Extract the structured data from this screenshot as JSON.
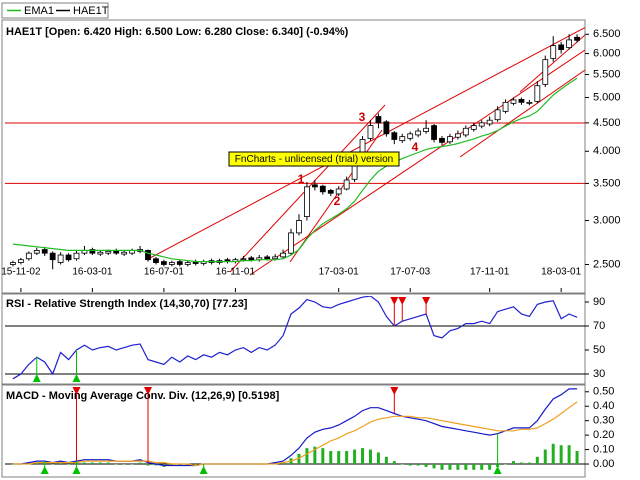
{
  "chart_data": [
    {
      "type": "candlestick",
      "name": "HAE1T",
      "info": "HAE1T [Open: 6.420  High: 6.500  Low: 6.280  Close: 6.340] (-0.94%)",
      "watermark": "FnCharts - unlicensed (trial) version",
      "annotations": [
        "1",
        "2",
        "3",
        "4"
      ],
      "xlim": [
        -1,
        72
      ],
      "xticks": [
        {
          "value": 1,
          "label": "15-11-02"
        },
        {
          "value": 10,
          "label": "16-03-01"
        },
        {
          "value": 19,
          "label": "16-07-01"
        },
        {
          "value": 28,
          "label": "16-11-01"
        },
        {
          "value": 41,
          "label": "17-03-01"
        },
        {
          "value": 50,
          "label": "17-07-03"
        },
        {
          "value": 60,
          "label": "17-11-01"
        },
        {
          "value": 69,
          "label": "18-03-01"
        }
      ],
      "ylim": [
        2.23,
        6.84
      ],
      "log_scale": true,
      "yticks": [
        {
          "value": 2.5,
          "label": "2.500"
        },
        {
          "value": 3,
          "label": "3.000"
        },
        {
          "value": 3.5,
          "label": "3.500"
        },
        {
          "value": 4,
          "label": "4.000"
        },
        {
          "value": 4.5,
          "label": "4.500"
        },
        {
          "value": 5,
          "label": "5.000"
        },
        {
          "value": 5.5,
          "label": "5.500"
        },
        {
          "value": 6,
          "label": "6.000"
        },
        {
          "value": 6.5,
          "label": "6.500"
        }
      ],
      "color_up": "#ffffff",
      "color_down": "#000000",
      "open": [
        2.5,
        2.52,
        2.56,
        2.62,
        2.66,
        2.62,
        2.52,
        2.6,
        2.56,
        2.62,
        2.66,
        2.61,
        2.62,
        2.65,
        2.61,
        2.62,
        2.64,
        2.65,
        2.56,
        2.53,
        2.5,
        2.53,
        2.5,
        2.53,
        2.51,
        2.54,
        2.52,
        2.55,
        2.53,
        2.55,
        2.57,
        2.55,
        2.58,
        2.56,
        2.58,
        2.62,
        2.85,
        3.05,
        3.48,
        3.46,
        3.4,
        3.35,
        3.42,
        3.56,
        3.82,
        4.22,
        4.62,
        4.52,
        4.32,
        4.18,
        4.22,
        4.28,
        4.34,
        4.45,
        4.22,
        4.16,
        4.24,
        4.28,
        4.38,
        4.44,
        4.48,
        4.56,
        4.72,
        4.88,
        4.96,
        4.88,
        4.92,
        5.28,
        5.88,
        6.22,
        6.15,
        6.42
      ],
      "high": [
        2.54,
        2.57,
        2.64,
        2.68,
        2.69,
        2.64,
        2.63,
        2.62,
        2.65,
        2.7,
        2.68,
        2.65,
        2.66,
        2.67,
        2.65,
        2.67,
        2.7,
        2.66,
        2.58,
        2.55,
        2.54,
        2.55,
        2.54,
        2.55,
        2.55,
        2.56,
        2.56,
        2.57,
        2.57,
        2.59,
        2.59,
        2.6,
        2.6,
        2.61,
        2.66,
        2.9,
        3.08,
        3.52,
        3.55,
        3.48,
        3.42,
        3.46,
        3.6,
        3.86,
        4.26,
        4.55,
        4.68,
        4.55,
        4.35,
        4.3,
        4.34,
        4.4,
        4.55,
        4.48,
        4.26,
        4.3,
        4.36,
        4.45,
        4.5,
        4.55,
        4.62,
        4.82,
        4.96,
        5.0,
        5.0,
        4.95,
        5.35,
        5.95,
        6.45,
        6.3,
        6.5,
        6.5
      ],
      "low": [
        2.48,
        2.5,
        2.54,
        2.6,
        2.59,
        2.45,
        2.5,
        2.53,
        2.54,
        2.6,
        2.6,
        2.59,
        2.6,
        2.6,
        2.59,
        2.6,
        2.62,
        2.53,
        2.5,
        2.48,
        2.48,
        2.48,
        2.48,
        2.49,
        2.49,
        2.5,
        2.5,
        2.51,
        2.51,
        2.53,
        2.53,
        2.53,
        2.54,
        2.54,
        2.56,
        2.6,
        2.82,
        3.0,
        3.4,
        3.34,
        3.32,
        3.32,
        3.4,
        3.52,
        3.78,
        4.18,
        4.4,
        4.25,
        4.12,
        4.14,
        4.18,
        4.24,
        4.3,
        4.15,
        4.1,
        4.12,
        4.2,
        4.24,
        4.34,
        4.4,
        4.44,
        4.52,
        4.68,
        4.84,
        4.85,
        4.84,
        4.88,
        5.22,
        5.8,
        6.0,
        6.1,
        6.28
      ],
      "close": [
        2.52,
        2.55,
        2.62,
        2.65,
        2.62,
        2.55,
        2.6,
        2.55,
        2.62,
        2.65,
        2.62,
        2.63,
        2.64,
        2.62,
        2.63,
        2.65,
        2.66,
        2.55,
        2.52,
        2.5,
        2.52,
        2.5,
        2.52,
        2.51,
        2.53,
        2.52,
        2.54,
        2.53,
        2.55,
        2.56,
        2.55,
        2.57,
        2.56,
        2.58,
        2.62,
        2.85,
        3.0,
        3.45,
        3.45,
        3.38,
        3.36,
        3.42,
        3.55,
        3.8,
        4.2,
        4.45,
        4.5,
        4.3,
        4.2,
        4.25,
        4.3,
        4.35,
        4.4,
        4.2,
        4.15,
        4.25,
        4.3,
        4.4,
        4.45,
        4.5,
        4.55,
        4.75,
        4.9,
        4.95,
        4.9,
        4.9,
        5.25,
        5.85,
        6.2,
        6.1,
        6.35,
        6.34
      ],
      "series": [
        {
          "name": "EMA1",
          "color": "#22bb22",
          "values": [
            2.72,
            2.71,
            2.7,
            2.69,
            2.68,
            2.67,
            2.66,
            2.65,
            2.65,
            2.65,
            2.65,
            2.65,
            2.65,
            2.65,
            2.65,
            2.65,
            2.65,
            2.62,
            2.6,
            2.58,
            2.56,
            2.55,
            2.54,
            2.53,
            2.53,
            2.53,
            2.53,
            2.53,
            2.53,
            2.54,
            2.54,
            2.55,
            2.55,
            2.55,
            2.56,
            2.6,
            2.66,
            2.78,
            2.88,
            2.96,
            3.02,
            3.08,
            3.15,
            3.25,
            3.4,
            3.55,
            3.68,
            3.76,
            3.82,
            3.88,
            3.93,
            3.98,
            4.03,
            4.06,
            4.08,
            4.1,
            4.13,
            4.17,
            4.21,
            4.26,
            4.3,
            4.36,
            4.44,
            4.52,
            4.58,
            4.63,
            4.72,
            4.88,
            5.05,
            5.18,
            5.3,
            5.42
          ]
        }
      ]
    },
    {
      "type": "line",
      "title": "RSI - Relative Strength Index (14,30,70) [77.23]",
      "xlim": [
        -1,
        72
      ],
      "ylim": [
        22.5,
        95
      ],
      "yticks": [
        30,
        50,
        70,
        90
      ],
      "levels": [
        70,
        30
      ],
      "color": "#2020d0",
      "values": [
        26,
        30,
        38,
        44,
        40,
        30,
        48,
        42,
        50,
        54,
        50,
        52,
        53,
        50,
        52,
        54,
        55,
        42,
        40,
        38,
        44,
        40,
        45,
        42,
        46,
        44,
        48,
        46,
        50,
        52,
        48,
        52,
        50,
        54,
        62,
        80,
        85,
        92,
        90,
        86,
        85,
        88,
        90,
        92,
        94,
        95,
        90,
        78,
        70,
        74,
        76,
        78,
        80,
        62,
        60,
        66,
        68,
        72,
        72,
        74,
        72,
        82,
        84,
        86,
        80,
        78,
        88,
        90,
        91,
        76,
        80,
        77.23
      ],
      "sell_signals": [
        48,
        49,
        52
      ],
      "buy_signals": [
        3,
        8
      ],
      "sell_color": "#e00000",
      "buy_color": "#00c000"
    },
    {
      "type": "macd",
      "title": "MACD - Moving Average Conv. Div. (12,26,9) [0.5198]",
      "xlim": [
        -1,
        72
      ],
      "ylim": [
        -0.076,
        0.54
      ],
      "yticks": [
        {
          "value": 0,
          "label": "0.00"
        },
        {
          "value": 0.1,
          "label": "0.10"
        },
        {
          "value": 0.2,
          "label": "0.20"
        },
        {
          "value": 0.3,
          "label": "0.30"
        },
        {
          "value": 0.4,
          "label": "0.40"
        },
        {
          "value": 0.5,
          "label": "0.50"
        }
      ],
      "series": [
        {
          "color": "#1818c8",
          "values": [
            0.0,
            0.0,
            0.01,
            0.02,
            0.02,
            0.01,
            0.02,
            0.01,
            0.02,
            0.03,
            0.03,
            0.03,
            0.03,
            0.02,
            0.02,
            0.02,
            0.03,
            0.01,
            0.0,
            -0.01,
            -0.01,
            -0.01,
            -0.01,
            -0.01,
            0.0,
            0.0,
            0.0,
            0.0,
            0.0,
            0.0,
            0.0,
            0.0,
            0.0,
            0.01,
            0.02,
            0.06,
            0.11,
            0.18,
            0.22,
            0.24,
            0.25,
            0.27,
            0.3,
            0.33,
            0.37,
            0.39,
            0.39,
            0.37,
            0.35,
            0.33,
            0.32,
            0.31,
            0.3,
            0.28,
            0.26,
            0.25,
            0.24,
            0.23,
            0.22,
            0.21,
            0.2,
            0.21,
            0.23,
            0.25,
            0.25,
            0.25,
            0.3,
            0.38,
            0.45,
            0.48,
            0.52,
            0.5198
          ]
        },
        {
          "color": "#f0a020",
          "values": [
            0.0,
            0.0,
            0.0,
            0.01,
            0.01,
            0.01,
            0.01,
            0.01,
            0.01,
            0.02,
            0.02,
            0.02,
            0.02,
            0.02,
            0.02,
            0.02,
            0.02,
            0.02,
            0.01,
            0.01,
            0.0,
            0.0,
            0.0,
            -0.01,
            0.0,
            0.0,
            0.0,
            0.0,
            0.0,
            0.0,
            0.0,
            0.0,
            0.0,
            0.0,
            0.01,
            0.02,
            0.04,
            0.07,
            0.1,
            0.13,
            0.16,
            0.18,
            0.21,
            0.23,
            0.26,
            0.29,
            0.31,
            0.32,
            0.33,
            0.33,
            0.33,
            0.32,
            0.32,
            0.31,
            0.3,
            0.29,
            0.28,
            0.27,
            0.26,
            0.25,
            0.24,
            0.23,
            0.23,
            0.23,
            0.24,
            0.24,
            0.25,
            0.28,
            0.31,
            0.35,
            0.39,
            0.43
          ]
        }
      ],
      "histogram": {
        "color": "#22b022",
        "values": [
          0.0,
          0.0,
          0.01,
          0.01,
          0.01,
          0.0,
          0.01,
          0.0,
          0.01,
          0.01,
          0.01,
          0.01,
          0.01,
          0.0,
          0.0,
          0.0,
          0.01,
          -0.01,
          -0.01,
          -0.02,
          -0.01,
          -0.01,
          -0.01,
          0.0,
          0.0,
          0.0,
          0.0,
          0.0,
          0.0,
          0.0,
          0.0,
          0.0,
          0.0,
          0.01,
          0.01,
          0.04,
          0.07,
          0.11,
          0.12,
          0.11,
          0.09,
          0.09,
          0.09,
          0.1,
          0.11,
          0.1,
          0.08,
          0.05,
          0.02,
          0.0,
          -0.01,
          -0.01,
          -0.02,
          -0.03,
          -0.04,
          -0.04,
          -0.04,
          -0.04,
          -0.04,
          -0.04,
          -0.04,
          -0.02,
          0.0,
          0.02,
          0.01,
          0.01,
          0.05,
          0.1,
          0.14,
          0.13,
          0.13,
          0.09
        ]
      },
      "sell_signals": [
        8,
        17,
        48
      ],
      "buy_signals": [
        4,
        8,
        24,
        61
      ],
      "sell_color": "#e00000",
      "buy_color": "#00c000"
    }
  ]
}
